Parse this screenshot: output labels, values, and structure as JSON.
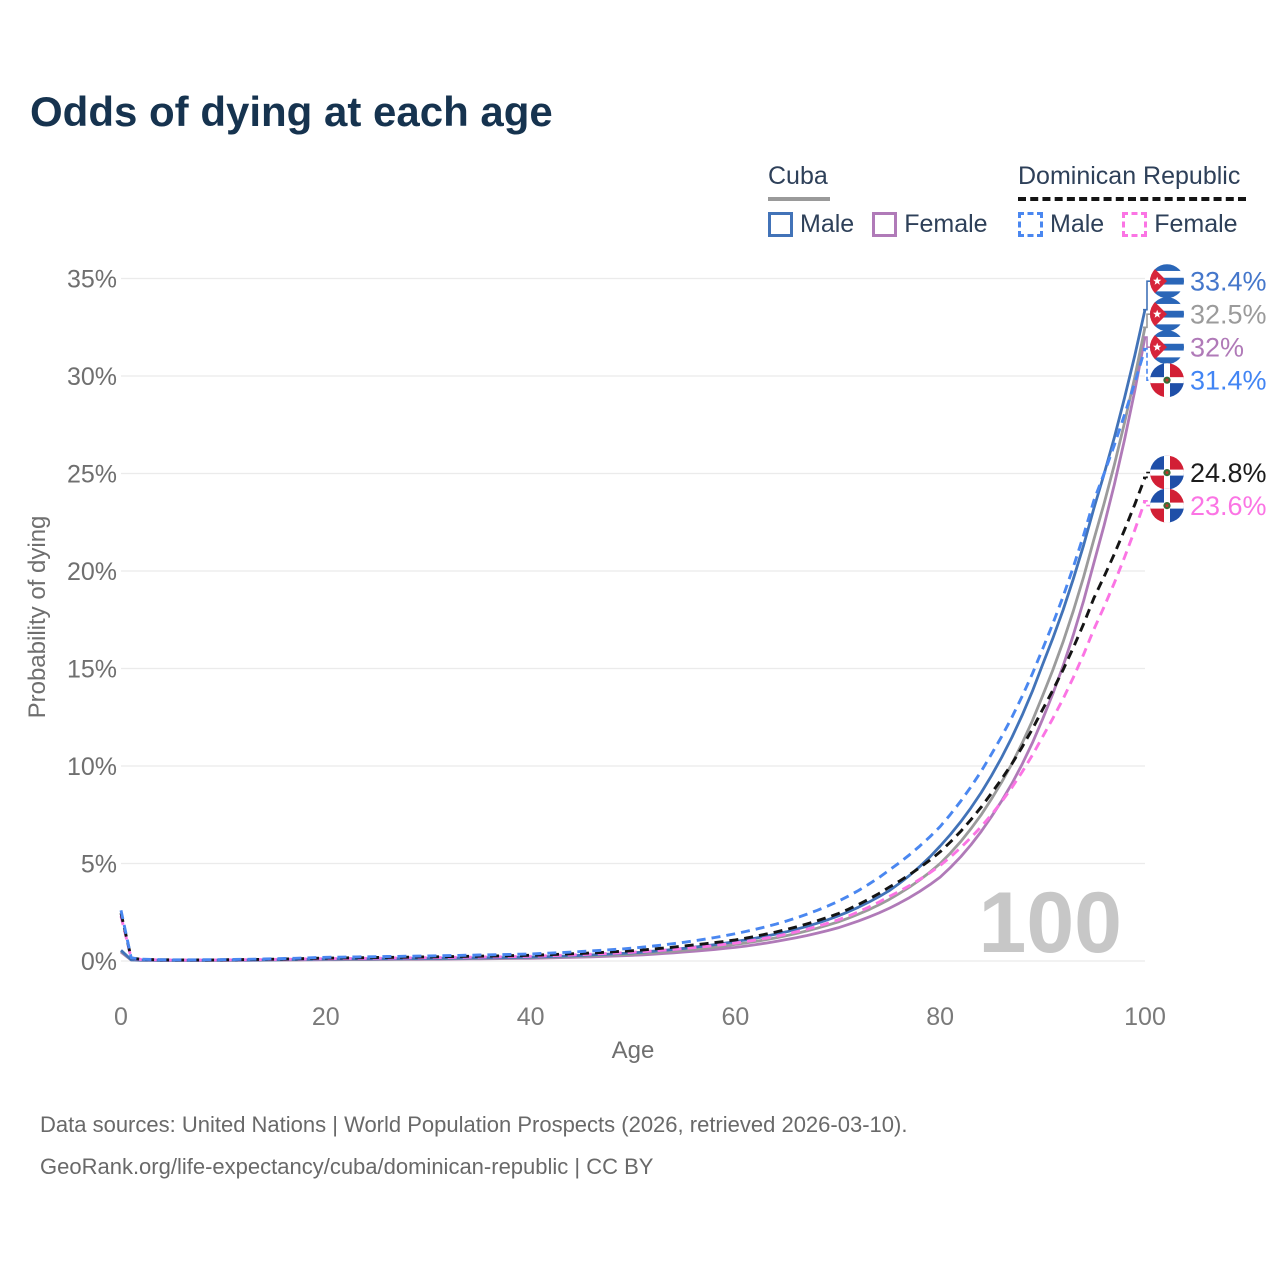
{
  "title": "Odds of dying at each age",
  "legend": {
    "groups": [
      {
        "name": "Cuba",
        "line_style": "solid",
        "header_swatch_color": "#9a9a9a",
        "items": [
          {
            "label": "Male",
            "color": "#4273b8"
          },
          {
            "label": "Female",
            "color": "#b07ab8"
          }
        ]
      },
      {
        "name": "Dominican Republic",
        "line_style": "dashed",
        "header_swatch_color": "#141414",
        "items": [
          {
            "label": "Male",
            "color": "#4a87f0"
          },
          {
            "label": "Female",
            "color": "#fb74e4"
          }
        ]
      }
    ]
  },
  "chart_data": {
    "type": "line",
    "title": "Odds of dying at each age",
    "xlabel": "Age",
    "ylabel": "Probability of dying",
    "xlim": [
      0,
      100
    ],
    "ylim": [
      0,
      35
    ],
    "x_ticks": [
      0,
      20,
      40,
      60,
      80,
      100
    ],
    "y_ticks": [
      0,
      5,
      10,
      15,
      20,
      25,
      30,
      35
    ],
    "y_tick_suffix": "%",
    "grid": "horizontal-only",
    "legend_position": "top-right",
    "watermark": "100",
    "x": [
      0,
      1,
      2,
      5,
      10,
      20,
      30,
      40,
      50,
      55,
      60,
      65,
      70,
      75,
      80,
      85,
      90,
      95,
      100
    ],
    "series": [
      {
        "id": "cuba-female",
        "name": "Cuba Female",
        "flag": "cuba",
        "color": "#b07ab8",
        "dashed": false,
        "end_label": "32%",
        "label_color": "#b07ab8",
        "values": [
          0.45,
          0.05,
          0.035,
          0.025,
          0.03,
          0.065,
          0.09,
          0.14,
          0.29,
          0.46,
          0.7,
          1.1,
          1.7,
          2.7,
          4.3,
          7.4,
          12.4,
          20.4,
          32.0
        ]
      },
      {
        "id": "cuba-all",
        "name": "Cuba",
        "flag": "cuba",
        "color": "#9b9b9b",
        "dashed": false,
        "end_label": "32.5%",
        "label_color": "#9b9b9b",
        "values": [
          0.5,
          0.055,
          0.04,
          0.03,
          0.035,
          0.08,
          0.11,
          0.17,
          0.35,
          0.55,
          0.85,
          1.3,
          2.0,
          3.15,
          5.0,
          8.3,
          13.6,
          21.6,
          32.5
        ]
      },
      {
        "id": "cuba-male",
        "name": "Cuba Male",
        "flag": "cuba",
        "color": "#4273b8",
        "dashed": false,
        "end_label": "33.4%",
        "label_color": "#4577cb",
        "values": [
          0.55,
          0.06,
          0.045,
          0.035,
          0.04,
          0.1,
          0.13,
          0.2,
          0.42,
          0.65,
          1.0,
          1.5,
          2.3,
          3.6,
          5.9,
          9.5,
          15.2,
          23.2,
          33.4
        ]
      },
      {
        "id": "dr-female",
        "name": "Dominican Republic Female",
        "flag": "dominican-republic",
        "color": "#fb74e4",
        "dashed": true,
        "end_label": "23.6%",
        "label_color": "#fb74e4",
        "values": [
          2.3,
          0.14,
          0.075,
          0.05,
          0.055,
          0.12,
          0.17,
          0.24,
          0.45,
          0.64,
          0.92,
          1.38,
          2.1,
          3.3,
          4.9,
          7.5,
          11.5,
          17.0,
          23.6
        ]
      },
      {
        "id": "dr-all",
        "name": "Dominican Republic",
        "flag": "dominican-republic",
        "color": "#141414",
        "dashed": true,
        "end_label": "24.8%",
        "label_color": "#1c1c1c",
        "values": [
          2.45,
          0.15,
          0.08,
          0.055,
          0.06,
          0.15,
          0.21,
          0.29,
          0.53,
          0.77,
          1.08,
          1.62,
          2.42,
          3.78,
          5.6,
          8.6,
          12.9,
          18.6,
          24.8
        ]
      },
      {
        "id": "dr-male",
        "name": "Dominican Republic Male",
        "flag": "dominican-republic",
        "color": "#4a87f0",
        "dashed": true,
        "end_label": "31.4%",
        "label_color": "#4285f4",
        "values": [
          2.6,
          0.16,
          0.09,
          0.06,
          0.07,
          0.19,
          0.26,
          0.36,
          0.66,
          0.96,
          1.4,
          2.05,
          3.05,
          4.65,
          6.9,
          10.6,
          16.0,
          23.6,
          31.4
        ]
      }
    ]
  },
  "footer": {
    "line1": "Data sources: United Nations | World Population Prospects (2026, retrieved 2026-03-10).",
    "line2": "GeoRank.org/life-expectancy/cuba/dominican-republic | CC BY"
  }
}
